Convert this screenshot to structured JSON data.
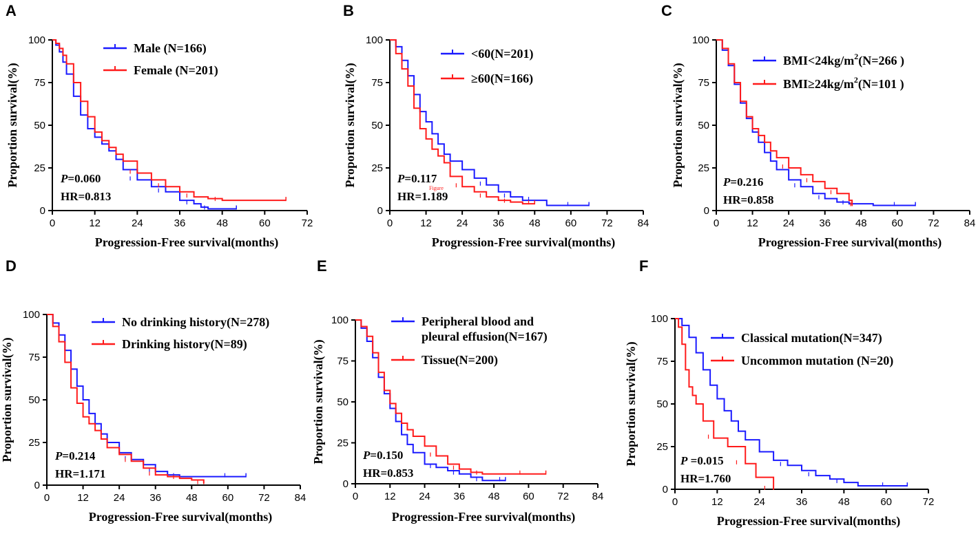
{
  "colors": {
    "blue": "#1a1aff",
    "red": "#ff1a1a"
  },
  "chart_data": [
    {
      "panel": "A",
      "type": "line",
      "xlabel": "Progression-Free survival(months)",
      "ylabel": "Proportion survival(%)",
      "xticks": [
        0,
        12,
        24,
        36,
        48,
        60,
        72
      ],
      "xlim": [
        0,
        72
      ],
      "yticks": [
        0,
        25,
        50,
        75,
        100
      ],
      "ylim": [
        0,
        100
      ],
      "p_italic": "P",
      "p_rest": "=0.060",
      "hr": "HR=0.813",
      "series": [
        {
          "name": "Male (N=166)",
          "color": "#1a1aff",
          "x": [
            0,
            1,
            2,
            3,
            4,
            6,
            8,
            10,
            12,
            14,
            16,
            18,
            20,
            24,
            28,
            32,
            36,
            40,
            42,
            44,
            52
          ],
          "y": [
            100,
            97,
            93,
            87,
            80,
            67,
            56,
            48,
            43,
            39,
            35,
            30,
            24,
            18,
            14,
            11,
            6,
            4,
            2,
            1,
            1
          ]
        },
        {
          "name": "Female (N=201)",
          "color": "#ff1a1a",
          "x": [
            0,
            1,
            2,
            3,
            4,
            6,
            8,
            10,
            12,
            14,
            16,
            18,
            20,
            24,
            28,
            32,
            36,
            40,
            44,
            48,
            66
          ],
          "y": [
            100,
            98,
            95,
            91,
            86,
            75,
            64,
            55,
            46,
            41,
            37,
            33,
            29,
            22,
            18,
            14,
            11,
            8,
            7,
            6,
            6
          ]
        }
      ]
    },
    {
      "panel": "B",
      "type": "line",
      "xlabel": "Progression-Free survival(months)",
      "ylabel": "Proportion survival(%)",
      "xticks": [
        0,
        12,
        24,
        36,
        48,
        60,
        72,
        84
      ],
      "xlim": [
        0,
        84
      ],
      "yticks": [
        0,
        25,
        50,
        75,
        100
      ],
      "ylim": [
        0,
        100
      ],
      "p_italic": "P",
      "p_rest": "=0.117",
      "hr": "HR=1.189",
      "note": "Figure",
      "series": [
        {
          "name": "<60(N=201)",
          "color": "#1a1aff",
          "x": [
            0,
            2,
            4,
            6,
            8,
            10,
            12,
            14,
            16,
            18,
            20,
            24,
            28,
            32,
            36,
            40,
            44,
            48,
            52,
            66
          ],
          "y": [
            100,
            96,
            88,
            79,
            68,
            58,
            52,
            45,
            39,
            33,
            29,
            24,
            19,
            15,
            11,
            8,
            6,
            6,
            3,
            3
          ]
        },
        {
          "name": "≥60(N=166)",
          "color": "#ff1a1a",
          "x": [
            0,
            2,
            4,
            6,
            8,
            10,
            12,
            14,
            16,
            18,
            20,
            24,
            28,
            32,
            36,
            40,
            44,
            48
          ],
          "y": [
            100,
            92,
            83,
            73,
            60,
            48,
            42,
            36,
            32,
            28,
            20,
            14,
            11,
            8,
            6,
            5,
            4,
            4
          ]
        }
      ]
    },
    {
      "panel": "C",
      "type": "line",
      "xlabel": "Progression-Free survival(months)",
      "ylabel": "Proportion survival(%)",
      "xticks": [
        0,
        12,
        24,
        36,
        48,
        60,
        72,
        84
      ],
      "xlim": [
        0,
        84
      ],
      "yticks": [
        0,
        25,
        50,
        75,
        100
      ],
      "ylim": [
        0,
        100
      ],
      "p_italic": "P",
      "p_rest": "=0.216",
      "hr": "HR=0.858",
      "legend_base": [
        "BMI<24kg/m",
        "BMI≥24kg/m"
      ],
      "legend_sup": "2",
      "legend_tail": [
        "(N=266 )",
        "(N=101 )"
      ],
      "series": [
        {
          "name": "BMI<24kg/m2(N=266 )",
          "color": "#1a1aff",
          "x": [
            0,
            2,
            4,
            6,
            8,
            10,
            12,
            14,
            16,
            18,
            20,
            24,
            28,
            32,
            36,
            40,
            44,
            52,
            66
          ],
          "y": [
            100,
            94,
            85,
            74,
            63,
            54,
            46,
            40,
            34,
            29,
            24,
            18,
            14,
            10,
            7,
            5,
            4,
            3,
            3
          ]
        },
        {
          "name": "BMI≥24kg/m2(N=101 )",
          "color": "#ff1a1a",
          "x": [
            0,
            2,
            4,
            6,
            8,
            10,
            12,
            14,
            16,
            18,
            20,
            24,
            28,
            32,
            36,
            40,
            44,
            45
          ],
          "y": [
            100,
            95,
            86,
            75,
            64,
            55,
            48,
            44,
            40,
            35,
            31,
            25,
            21,
            17,
            13,
            10,
            6,
            3
          ]
        }
      ]
    },
    {
      "panel": "D",
      "type": "line",
      "xlabel": "Progression-Free survival(months)",
      "ylabel": "Proportion survival(%)",
      "xticks": [
        0,
        12,
        24,
        36,
        48,
        60,
        72,
        84
      ],
      "xlim": [
        0,
        84
      ],
      "yticks": [
        0,
        25,
        50,
        75,
        100
      ],
      "ylim": [
        0,
        100
      ],
      "p_italic": "P",
      "p_rest": "=0.214",
      "hr": "HR=1.171",
      "series": [
        {
          "name": "No drinking history(N=278)",
          "color": "#1a1aff",
          "x": [
            0,
            2,
            4,
            6,
            8,
            10,
            12,
            14,
            16,
            18,
            20,
            24,
            28,
            32,
            36,
            40,
            44,
            52,
            66
          ],
          "y": [
            100,
            95,
            88,
            79,
            68,
            58,
            50,
            42,
            36,
            30,
            25,
            19,
            15,
            12,
            8,
            6,
            5,
            5,
            5
          ]
        },
        {
          "name": "Drinking history(N=89)",
          "color": "#ff1a1a",
          "x": [
            0,
            2,
            4,
            6,
            8,
            10,
            12,
            14,
            16,
            18,
            20,
            24,
            28,
            32,
            36,
            40,
            44,
            48,
            52
          ],
          "y": [
            100,
            93,
            84,
            72,
            57,
            48,
            40,
            36,
            32,
            27,
            22,
            18,
            14,
            10,
            6,
            5,
            4,
            3,
            1
          ]
        }
      ]
    },
    {
      "panel": "E",
      "type": "line",
      "xlabel": "Progression-Free survival(months)",
      "ylabel": "Proportion survival(%)",
      "xticks": [
        0,
        12,
        24,
        36,
        48,
        60,
        72,
        84
      ],
      "xlim": [
        0,
        84
      ],
      "yticks": [
        0,
        25,
        50,
        75,
        100
      ],
      "ylim": [
        0,
        100
      ],
      "p_italic": "P",
      "p_rest": "=0.150",
      "hr": "HR=0.853",
      "legend_line2": " pleural effusion(N=167)",
      "series": [
        {
          "name": "Peripheral blood and",
          "color": "#1a1aff",
          "x": [
            0,
            2,
            4,
            6,
            8,
            10,
            12,
            14,
            16,
            18,
            20,
            24,
            28,
            32,
            36,
            40,
            44,
            48,
            52
          ],
          "y": [
            100,
            95,
            87,
            77,
            65,
            55,
            46,
            38,
            30,
            24,
            19,
            12,
            10,
            8,
            6,
            4,
            2,
            2,
            2
          ]
        },
        {
          "name": "Tissue(N=200)",
          "color": "#ff1a1a",
          "x": [
            0,
            2,
            4,
            6,
            8,
            10,
            12,
            14,
            16,
            18,
            20,
            24,
            28,
            32,
            36,
            40,
            44,
            48,
            66
          ],
          "y": [
            100,
            96,
            90,
            80,
            68,
            57,
            49,
            43,
            37,
            33,
            29,
            23,
            17,
            12,
            9,
            7,
            6,
            6,
            6
          ]
        }
      ]
    },
    {
      "panel": "F",
      "type": "line",
      "xlabel": "Progression-Free survival(months)",
      "ylabel": "Proportion survival(%)",
      "xticks": [
        0,
        12,
        24,
        36,
        48,
        60,
        72
      ],
      "xlim": [
        0,
        72
      ],
      "yticks": [
        0,
        25,
        50,
        75,
        100
      ],
      "ylim": [
        0,
        100
      ],
      "p_italic": "P",
      "p_rest": " =0.015",
      "hr": "HR=1.760",
      "series": [
        {
          "name": "Classical mutation(N=347)",
          "color": "#1a1aff",
          "x": [
            0,
            2,
            4,
            6,
            8,
            10,
            12,
            14,
            16,
            18,
            20,
            24,
            28,
            32,
            36,
            40,
            44,
            48,
            52,
            66
          ],
          "y": [
            100,
            96,
            89,
            80,
            70,
            61,
            53,
            46,
            40,
            34,
            29,
            22,
            17,
            14,
            11,
            8,
            6,
            4,
            2,
            2
          ]
        },
        {
          "name": "Uncommon mutation (N=20)",
          "color": "#ff1a1a",
          "x": [
            0,
            1,
            2,
            3,
            4,
            5,
            6,
            8,
            11,
            15,
            20,
            23,
            28
          ],
          "y": [
            100,
            95,
            85,
            70,
            60,
            55,
            50,
            40,
            30,
            25,
            15,
            7,
            0
          ]
        }
      ]
    }
  ]
}
